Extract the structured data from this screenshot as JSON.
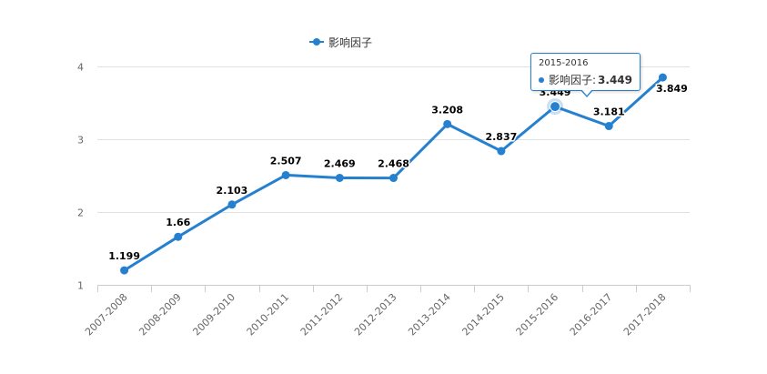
{
  "chart_data": {
    "type": "line",
    "categories": [
      "2007-2008",
      "2008-2009",
      "2009-2010",
      "2010-2011",
      "2011-2012",
      "2012-2013",
      "2013-2014",
      "2014-2015",
      "2015-2016",
      "2016-2017",
      "2017-2018"
    ],
    "series": [
      {
        "name": "影响因子",
        "values": [
          1.199,
          1.66,
          2.103,
          2.507,
          2.469,
          2.468,
          3.208,
          2.837,
          3.449,
          3.181,
          3.849
        ],
        "labels": [
          "1.199",
          "1.66",
          "2.103",
          "2.507",
          "2.469",
          "2.468",
          "3.208",
          "2.837",
          "3.449",
          "3.181",
          "3.849"
        ]
      }
    ],
    "yticks": [
      "1",
      "2",
      "3",
      "4"
    ],
    "ylim": [
      1,
      4
    ],
    "grid": true,
    "legend": "top-center",
    "highlighted_index": 8,
    "color": "#2580d0"
  },
  "legend": {
    "label": "影响因子"
  },
  "tooltip": {
    "category": "2015-2016",
    "series_label": "影响因子:",
    "value": "3.449"
  }
}
